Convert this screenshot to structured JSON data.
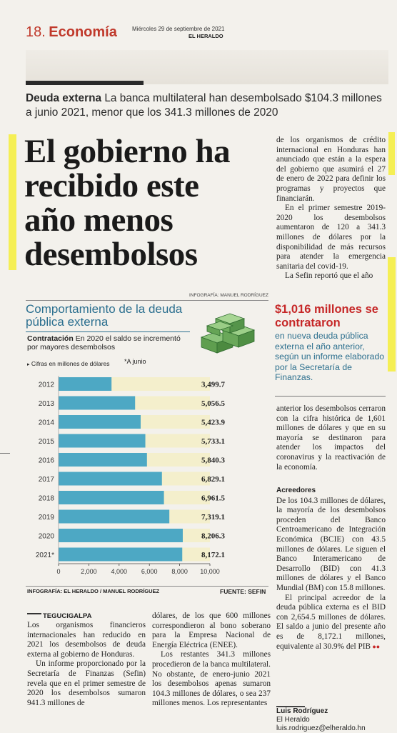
{
  "header": {
    "page_number": "18.",
    "section": "Economía",
    "date": "Miércoles 29 de septiembre de 2021",
    "publication": "EL HERALDO"
  },
  "deck": {
    "kicker": "Deuda externa",
    "text": "La banca multilateral han desembolsado $104.3 millones a junio 2021, menor que los 341.3 millones de 2020"
  },
  "headline": {
    "lines": [
      "El gobierno ha",
      "recibido este",
      "año menos",
      "desembolsos"
    ]
  },
  "infographic": {
    "credit_top": "INFOGRAFÍA: MANUEL RODRÍGUEZ",
    "title_line1": "Comportamiento de la deuda",
    "title_line2": "pública externa",
    "lead_kicker": "Contratación",
    "lead_line1": "En 2020 el saldo se incrementó",
    "lead_line2": "por mayores desembolsos",
    "units": "Cifras en millones de dólares",
    "footnote": "*A junio",
    "credit_bottom": "INFOGRAFÍA: EL HERALDO / MANUEL RODRÍGUEZ",
    "source": "FUENTE: SEFIN",
    "colors": {
      "bar": "#4da8c4",
      "track": "#f4efcc",
      "title": "#2b6f8f"
    }
  },
  "chart_data": {
    "type": "bar",
    "orientation": "horizontal",
    "categories": [
      "2012",
      "2013",
      "2014",
      "2015",
      "2016",
      "2017",
      "2018",
      "2019",
      "2020",
      "2021*"
    ],
    "values": [
      3499.7,
      5056.5,
      5423.9,
      5733.1,
      5840.3,
      6829.1,
      6961.5,
      7319.1,
      8206.3,
      8172.1
    ],
    "value_labels": [
      "3,499.7",
      "5,056.5",
      "5,423.9",
      "5,733.1",
      "5,840.3",
      "6,829.1",
      "6,961.5",
      "7,319.1",
      "8,206.3",
      "8,172.1"
    ],
    "xticks": [
      "0",
      "2,000",
      "4,000",
      "6,000",
      "8,000",
      "10,000"
    ],
    "xlim": [
      0,
      10000
    ],
    "grid": false
  },
  "col2_top": [
    "de los organismos de crédito internacional en Honduras han anunciado que están a la espera del gobierno que asumirá el 27 de enero de 2022 para definir los programas y proyectos que financiarán.",
    "En el primer semestre 2019-2020 los desembolsos aumentaron de 120 a 341.3 millones de dólares por la disponibilidad de más recursos para atender la emergencia sanitaria del covid-19.",
    "La Sefin reportó que el año"
  ],
  "callout": {
    "highlight": "$1,016 millones se contrataron",
    "text": "en nueva deuda pública externa el año anterior, según un informe elaborado por la Secretaría de Finanzas."
  },
  "col2_mid": "anterior los desembolsos cerraron con la cifra histórica de 1,601 millones de dólares y que en su mayoría se destinaron para atender los impactos del coronavirus y la reactivación de la economía.",
  "acreedores": {
    "subhead": "Acreedores",
    "paragraphs": [
      "De los 104.3 millones de dólares, la mayoría de los desembolsos proceden del Banco Centroamericano de Integración Económica (BCIE) con 43.5 millones de dólares. Le siguen el Banco Interamericano de Desarrollo (BID) con 41.3 millones de dólares y el Banco Mundial (BM) con 15.8 millones.",
      "El principal acreedor de la deuda pública externa es el BID con 2,654.5 millones de dólares. El saldo a junio del presente año es de 8,172.1 millones, equivalente al 30.9% del PIB"
    ]
  },
  "byline": {
    "name": "Luis Rodríguez",
    "outlet": "El Heraldo",
    "email": "luis.rodriguez@elheraldo.hn"
  },
  "article": {
    "dateline": "TEGUCIGALPA",
    "col_a": [
      "Los organismos financieros internacionales han reducido en 2021 los desembolsos de deuda externa al gobierno de Honduras.",
      "Un informe proporcionado por la Secretaría de Finanzas (Sefin) revela que en el primer semestre de 2020 los desembolsos sumaron 941.3 millones de"
    ],
    "col_b": [
      "dólares, de los que 600 millones correspondieron al bono soberano para la Empresa Nacional de Energía Eléctrica (ENEE).",
      "Los restantes 341.3 millones procedieron de la banca multilateral. No obstante, de enero-junio 2021 los desembolsos apenas sumaron 104.3 millones de dólares, o sea 237 millones menos. Los representantes"
    ]
  }
}
